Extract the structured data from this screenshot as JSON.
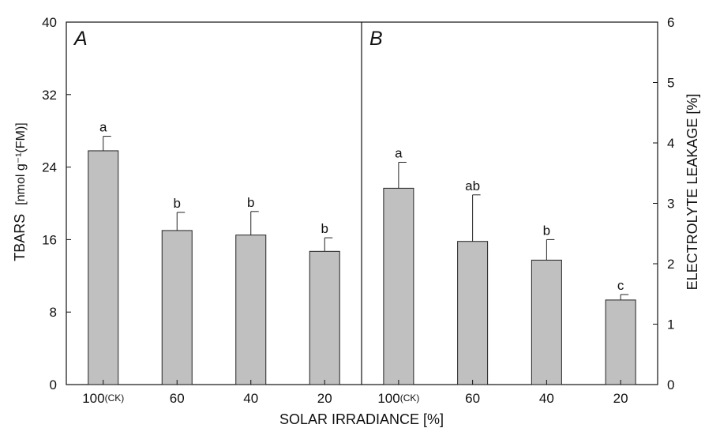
{
  "colors": {
    "bar_fill": "#c0c0c0",
    "bar_stroke": "#222222",
    "axis": "#111111"
  },
  "chart_data": [
    {
      "type": "bar",
      "panel_label": "A",
      "categories": [
        "100",
        "60",
        "40",
        "20"
      ],
      "category_suffix": [
        "(CK)",
        "",
        "",
        ""
      ],
      "values": [
        25.8,
        17.0,
        16.5,
        14.7
      ],
      "errors": [
        1.6,
        2.0,
        2.6,
        1.5
      ],
      "significance": [
        "a",
        "b",
        "b",
        "b"
      ],
      "ylabel_main": "TBARS",
      "ylabel_units": "[nmol g⁻¹(FM)]",
      "ylim": [
        0,
        40
      ],
      "yticks": [
        0,
        8,
        16,
        24,
        32,
        40
      ],
      "y_axis_side": "left"
    },
    {
      "type": "bar",
      "panel_label": "B",
      "categories": [
        "100",
        "60",
        "40",
        "20"
      ],
      "category_suffix": [
        "(CK)",
        "",
        "",
        ""
      ],
      "values": [
        3.25,
        2.37,
        2.06,
        1.4
      ],
      "errors": [
        0.43,
        0.77,
        0.34,
        0.09
      ],
      "significance": [
        "a",
        "ab",
        "b",
        "c"
      ],
      "ylabel": "ELECTROLYTE LEAKAGE [%]",
      "ylim": [
        0,
        6
      ],
      "yticks": [
        0,
        1,
        2,
        3,
        4,
        5,
        6
      ],
      "y_axis_side": "right"
    }
  ],
  "xlabel": "SOLAR IRRADIANCE [%]"
}
